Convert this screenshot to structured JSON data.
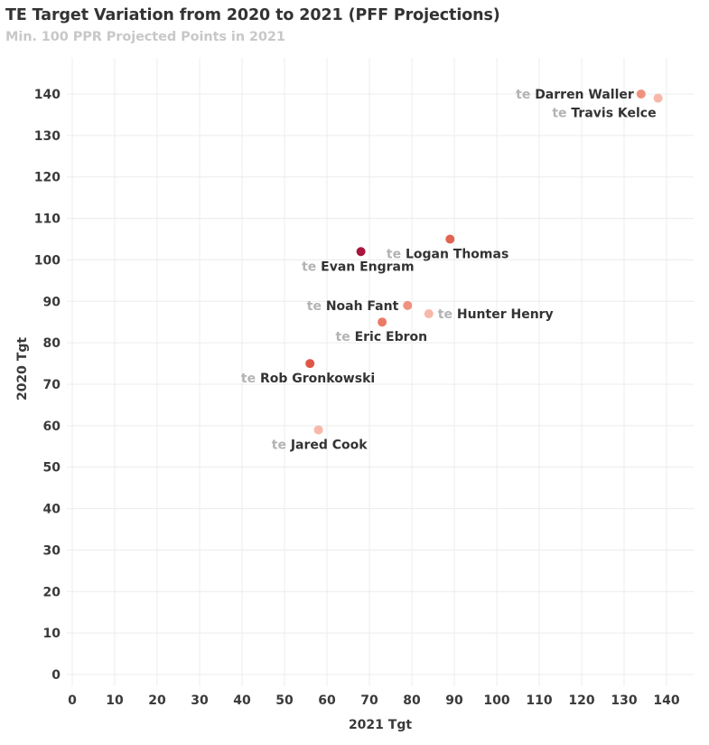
{
  "chart_data": {
    "type": "scatter",
    "title": "TE Target Variation from 2020 to 2021 (PFF Projections)",
    "subtitle": "Min. 100 PPR Projected Points in 2021",
    "xlabel": "2021 Tgt",
    "ylabel": "2020 Tgt",
    "xlim": [
      0,
      140
    ],
    "ylim": [
      0,
      140
    ],
    "x_ticks": [
      0,
      10,
      20,
      30,
      40,
      50,
      60,
      70,
      80,
      90,
      100,
      110,
      120,
      130,
      140
    ],
    "y_ticks": [
      0,
      10,
      20,
      30,
      40,
      50,
      60,
      70,
      80,
      90,
      100,
      110,
      120,
      130,
      140
    ],
    "grid": true,
    "points": [
      {
        "position": "te",
        "name": "Darren Waller",
        "x": 134,
        "y": 140,
        "color": "#f0917f"
      },
      {
        "position": "te",
        "name": "Travis Kelce",
        "x": 138,
        "y": 139,
        "color": "#f7b8a9"
      },
      {
        "position": "te",
        "name": "Logan Thomas",
        "x": 89,
        "y": 105,
        "color": "#e0644f"
      },
      {
        "position": "te",
        "name": "Evan Engram",
        "x": 68,
        "y": 102,
        "color": "#a8153d"
      },
      {
        "position": "te",
        "name": "Noah Fant",
        "x": 79,
        "y": 89,
        "color": "#f0917f"
      },
      {
        "position": "te",
        "name": "Hunter Henry",
        "x": 84,
        "y": 87,
        "color": "#f7b8a9"
      },
      {
        "position": "te",
        "name": "Eric Ebron",
        "x": 73,
        "y": 85,
        "color": "#eb7a64"
      },
      {
        "position": "te",
        "name": "Rob Gronkowski",
        "x": 56,
        "y": 75,
        "color": "#e05545"
      },
      {
        "position": "te",
        "name": "Jared Cook",
        "x": 58,
        "y": 59,
        "color": "#f7b8a9"
      }
    ]
  }
}
